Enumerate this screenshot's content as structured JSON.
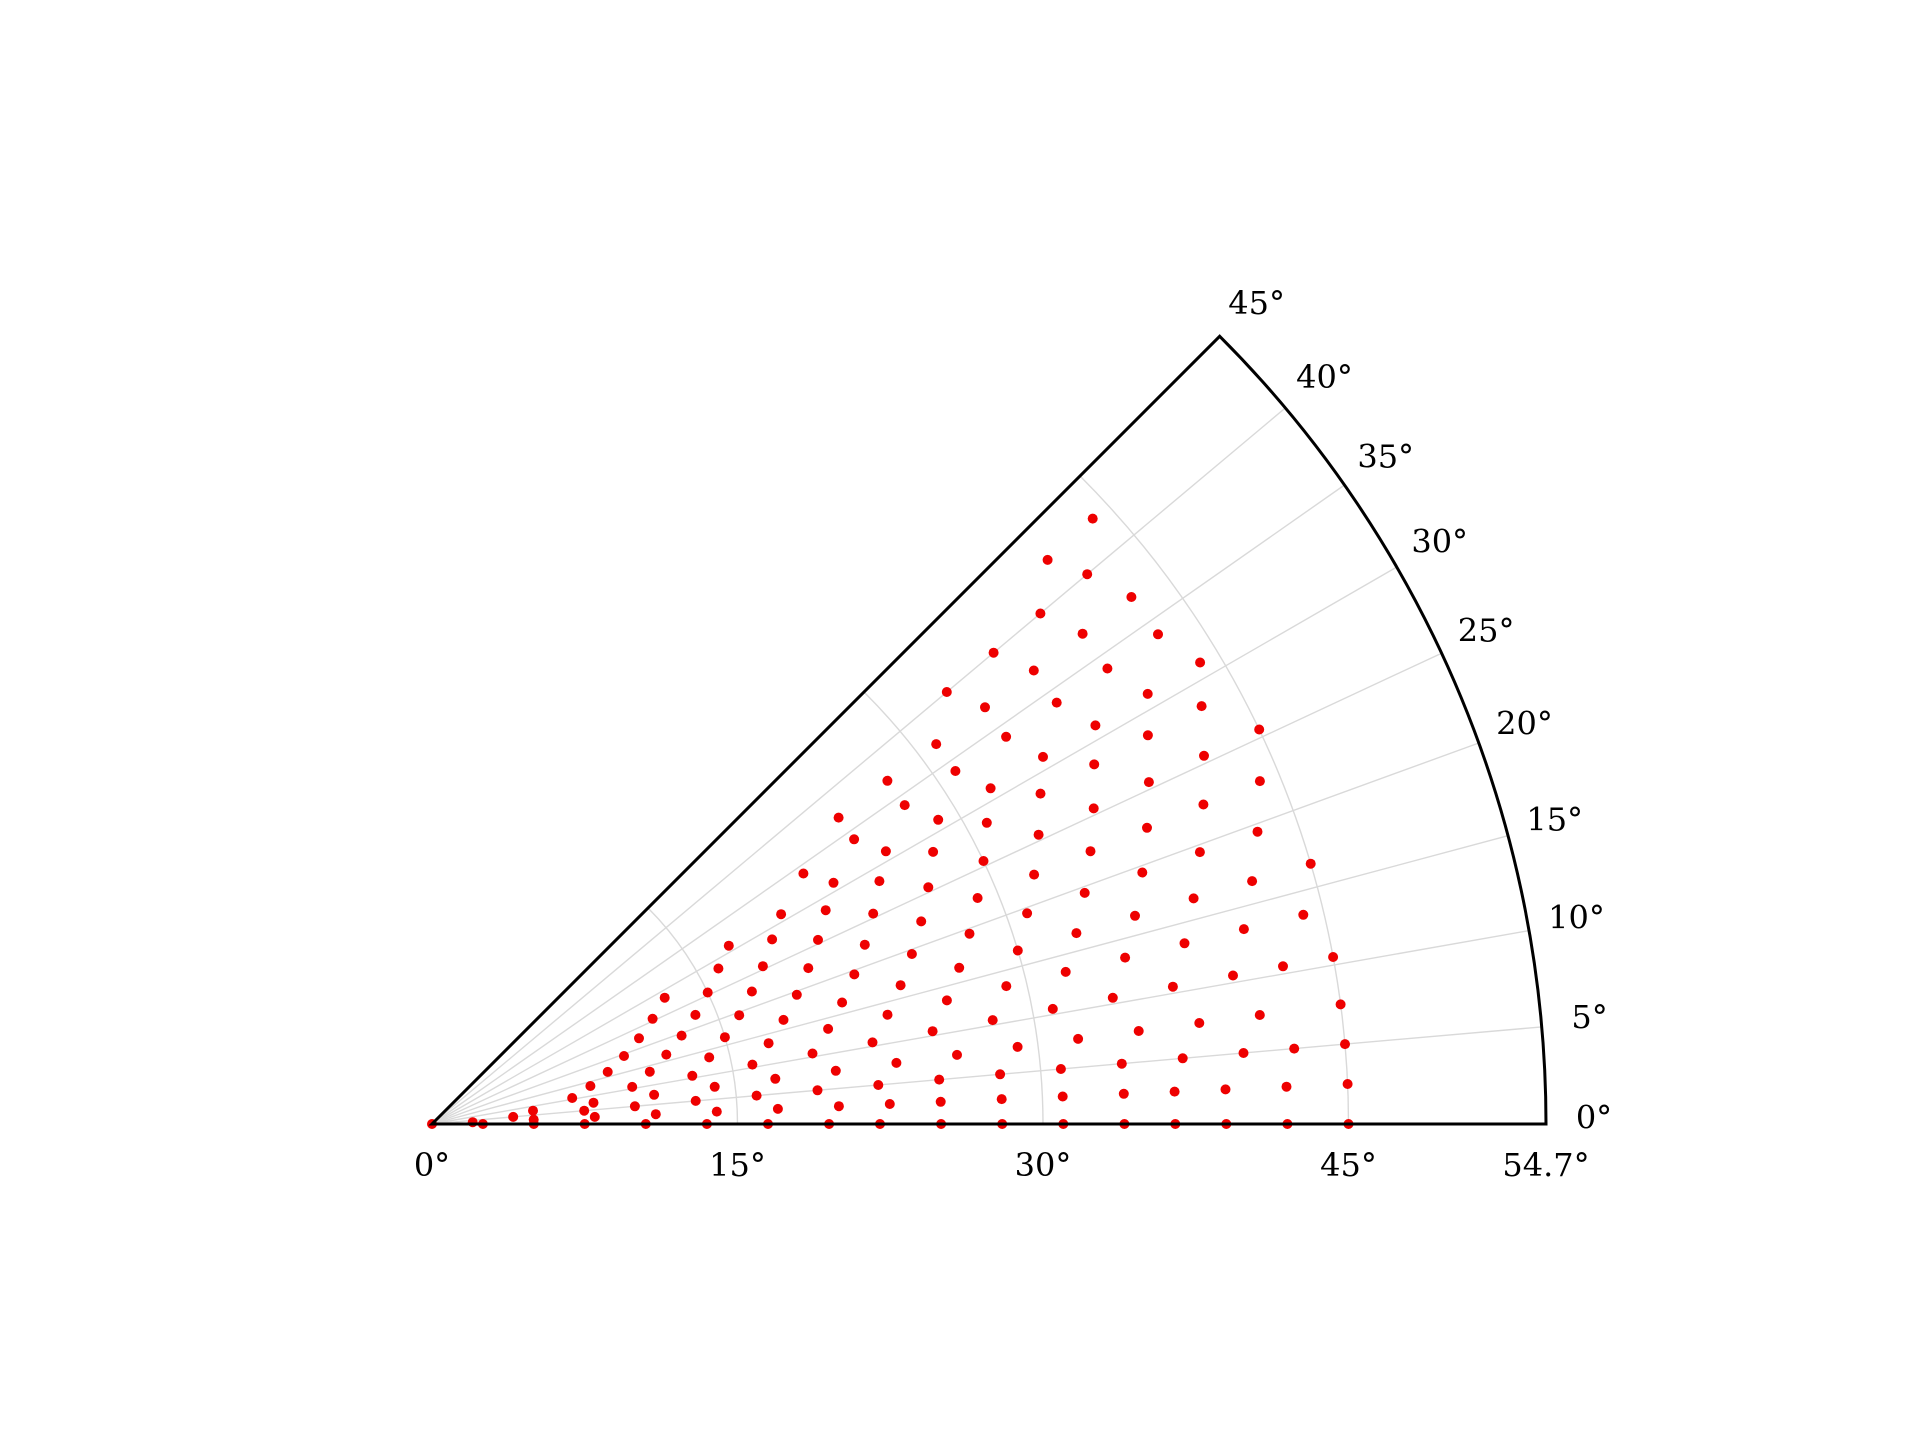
{
  "chart_data": {
    "type": "scatter",
    "title": "",
    "coordinate_system": "polar sector (stereographic inverse pole figure)",
    "angular_range_deg": [
      0,
      45
    ],
    "radial_range_deg": [
      0,
      54.7
    ],
    "angular_tick_labels": [
      "0°",
      "5°",
      "10°",
      "15°",
      "20°",
      "25°",
      "30°",
      "35°",
      "40°",
      "45°"
    ],
    "radial_tick_labels": [
      "0°",
      "15°",
      "30°",
      "45°",
      "54.7°"
    ],
    "angular_gridlines_deg": [
      5,
      10,
      15,
      20,
      25,
      30,
      35,
      40
    ],
    "radial_gridlines_deg": [
      15,
      30,
      45
    ],
    "grid": true,
    "legend": "none",
    "colors": {
      "points": "#ee0000",
      "frame": "#000000",
      "grid": "#d9d9d9"
    },
    "series": [
      {
        "points_polar_deg": [
          [
            0,
            0
          ],
          [
            0,
            2.5
          ],
          [
            0,
            5
          ],
          [
            0,
            7.5
          ],
          [
            0,
            10.5
          ],
          [
            0,
            13.5
          ],
          [
            0,
            16.5
          ],
          [
            0,
            19.5
          ],
          [
            0,
            22
          ],
          [
            0,
            25
          ],
          [
            0,
            28
          ],
          [
            0,
            31
          ],
          [
            0,
            34
          ],
          [
            0,
            36.5
          ],
          [
            0,
            39
          ],
          [
            0,
            42
          ],
          [
            0,
            45
          ],
          [
            2.5,
            2
          ],
          [
            2.5,
            5
          ],
          [
            2.5,
            8
          ],
          [
            2.5,
            11
          ],
          [
            2.5,
            14
          ],
          [
            2.5,
            17
          ],
          [
            2.5,
            20
          ],
          [
            2.5,
            22.5
          ],
          [
            2.5,
            25
          ],
          [
            2.5,
            28
          ],
          [
            2.5,
            31
          ],
          [
            2.5,
            34
          ],
          [
            2.5,
            36.5
          ],
          [
            2.5,
            39
          ],
          [
            2.5,
            42
          ],
          [
            2.5,
            45
          ],
          [
            5,
            4
          ],
          [
            5,
            7.5
          ],
          [
            5,
            10
          ],
          [
            5,
            13
          ],
          [
            5,
            16
          ],
          [
            5,
            19
          ],
          [
            5,
            22
          ],
          [
            5,
            25
          ],
          [
            5,
            28
          ],
          [
            5,
            31
          ],
          [
            5,
            34
          ],
          [
            5,
            37
          ],
          [
            5,
            40
          ],
          [
            5,
            42.5
          ],
          [
            5,
            45
          ],
          [
            7.5,
            5
          ],
          [
            7.5,
            8
          ],
          [
            7.5,
            11
          ],
          [
            7.5,
            14
          ],
          [
            7.5,
            17
          ],
          [
            7.5,
            20
          ],
          [
            7.5,
            23
          ],
          [
            7.5,
            26
          ],
          [
            7.5,
            29
          ],
          [
            7.5,
            32
          ],
          [
            7.5,
            35
          ],
          [
            7.5,
            38
          ],
          [
            7.5,
            41
          ],
          [
            7.5,
            45
          ],
          [
            10.5,
            7
          ],
          [
            10.5,
            10
          ],
          [
            10.5,
            13
          ],
          [
            10.5,
            16
          ],
          [
            10.5,
            19
          ],
          [
            10.5,
            22
          ],
          [
            10.5,
            25
          ],
          [
            10.5,
            28
          ],
          [
            10.5,
            31
          ],
          [
            10.5,
            34
          ],
          [
            10.5,
            37
          ],
          [
            10.5,
            40
          ],
          [
            10.5,
            42.5
          ],
          [
            10.5,
            45
          ],
          [
            13.5,
            8
          ],
          [
            13.5,
            11
          ],
          [
            13.5,
            14
          ],
          [
            13.5,
            17
          ],
          [
            13.5,
            20
          ],
          [
            13.5,
            23
          ],
          [
            13.5,
            26
          ],
          [
            13.5,
            29
          ],
          [
            13.5,
            32
          ],
          [
            13.5,
            35
          ],
          [
            13.5,
            38
          ],
          [
            13.5,
            41
          ],
          [
            13.5,
            44
          ],
          [
            16.5,
            9
          ],
          [
            16.5,
            12
          ],
          [
            16.5,
            15
          ],
          [
            16.5,
            18
          ],
          [
            16.5,
            21
          ],
          [
            16.5,
            24
          ],
          [
            16.5,
            27
          ],
          [
            16.5,
            30
          ],
          [
            16.5,
            33
          ],
          [
            16.5,
            36
          ],
          [
            16.5,
            39
          ],
          [
            16.5,
            42
          ],
          [
            16.5,
            45
          ],
          [
            19.5,
            10
          ],
          [
            19.5,
            13
          ],
          [
            19.5,
            16
          ],
          [
            19.5,
            19
          ],
          [
            19.5,
            22
          ],
          [
            19.5,
            25
          ],
          [
            19.5,
            28
          ],
          [
            19.5,
            31
          ],
          [
            19.5,
            34
          ],
          [
            19.5,
            37
          ],
          [
            19.5,
            40
          ],
          [
            19.5,
            43
          ],
          [
            22.5,
            11
          ],
          [
            22.5,
            14
          ],
          [
            22.5,
            17
          ],
          [
            22.5,
            20
          ],
          [
            22.5,
            23
          ],
          [
            22.5,
            26
          ],
          [
            22.5,
            29
          ],
          [
            22.5,
            32
          ],
          [
            22.5,
            35
          ],
          [
            22.5,
            38
          ],
          [
            22.5,
            41
          ],
          [
            22.5,
            44
          ],
          [
            25.5,
            12
          ],
          [
            25.5,
            15
          ],
          [
            25.5,
            18
          ],
          [
            25.5,
            21
          ],
          [
            25.5,
            24
          ],
          [
            25.5,
            27
          ],
          [
            25.5,
            30
          ],
          [
            25.5,
            33
          ],
          [
            25.5,
            36
          ],
          [
            25.5,
            39
          ],
          [
            25.5,
            42
          ],
          [
            25.5,
            45
          ],
          [
            28.5,
            13
          ],
          [
            28.5,
            16
          ],
          [
            28.5,
            19
          ],
          [
            28.5,
            22
          ],
          [
            28.5,
            25
          ],
          [
            28.5,
            28
          ],
          [
            28.5,
            31
          ],
          [
            28.5,
            34
          ],
          [
            28.5,
            37
          ],
          [
            28.5,
            40
          ],
          [
            28.5,
            43
          ],
          [
            31,
            17
          ],
          [
            31,
            20
          ],
          [
            31,
            23
          ],
          [
            31,
            26
          ],
          [
            31,
            29
          ],
          [
            31,
            32
          ],
          [
            31,
            35
          ],
          [
            31,
            38
          ],
          [
            31,
            41
          ],
          [
            31,
            44
          ],
          [
            34,
            22
          ],
          [
            34,
            25
          ],
          [
            34,
            28
          ],
          [
            34,
            31
          ],
          [
            34,
            34
          ],
          [
            34,
            37
          ],
          [
            34,
            40
          ],
          [
            34,
            43
          ],
          [
            37,
            25
          ],
          [
            37,
            28
          ],
          [
            37,
            31
          ],
          [
            37,
            34
          ],
          [
            37,
            37
          ],
          [
            37,
            40
          ],
          [
            37,
            43
          ],
          [
            40,
            33
          ],
          [
            40,
            36
          ],
          [
            40,
            39
          ],
          [
            40,
            42
          ],
          [
            42.5,
            41
          ],
          [
            42.5,
            44
          ]
        ]
      }
    ]
  }
}
